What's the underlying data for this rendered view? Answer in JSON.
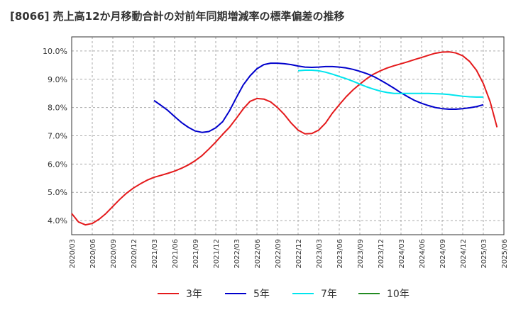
{
  "title": "[8066]  売上高12か月移動合計の対前年同期増減率の標準偏差の推移",
  "chart_data": {
    "type": "line",
    "ylim": [
      3.5,
      10.5
    ],
    "yticks": [
      "4.0%",
      "5.0%",
      "6.0%",
      "7.0%",
      "8.0%",
      "9.0%",
      "10.0%"
    ],
    "ytick_values": [
      4,
      5,
      6,
      7,
      8,
      9,
      10
    ],
    "x_range": [
      "2020/03",
      "2025/06"
    ],
    "xticks": [
      "2020/03",
      "2020/06",
      "2020/09",
      "2020/12",
      "2021/03",
      "2021/06",
      "2021/09",
      "2021/12",
      "2022/03",
      "2022/06",
      "2022/09",
      "2022/12",
      "2023/03",
      "2023/06",
      "2023/09",
      "2023/12",
      "2024/03",
      "2024/06",
      "2024/09",
      "2024/12",
      "2025/03",
      "2025/06"
    ],
    "grid": true,
    "legend_position": "bottom",
    "series": [
      {
        "name": "3年",
        "color": "#e41a1c",
        "points": [
          [
            "2020/03",
            4.25
          ],
          [
            "2020/04",
            3.95
          ],
          [
            "2020/05",
            3.85
          ],
          [
            "2020/06",
            3.9
          ],
          [
            "2020/07",
            4.05
          ],
          [
            "2020/08",
            4.25
          ],
          [
            "2020/09",
            4.5
          ],
          [
            "2020/10",
            4.75
          ],
          [
            "2020/11",
            4.97
          ],
          [
            "2020/12",
            5.15
          ],
          [
            "2021/01",
            5.3
          ],
          [
            "2021/02",
            5.43
          ],
          [
            "2021/03",
            5.53
          ],
          [
            "2021/04",
            5.6
          ],
          [
            "2021/05",
            5.67
          ],
          [
            "2021/06",
            5.75
          ],
          [
            "2021/07",
            5.85
          ],
          [
            "2021/08",
            5.97
          ],
          [
            "2021/09",
            6.12
          ],
          [
            "2021/10",
            6.3
          ],
          [
            "2021/11",
            6.53
          ],
          [
            "2021/12",
            6.78
          ],
          [
            "2022/01",
            7.05
          ],
          [
            "2022/02",
            7.3
          ],
          [
            "2022/03",
            7.62
          ],
          [
            "2022/04",
            7.95
          ],
          [
            "2022/05",
            8.22
          ],
          [
            "2022/06",
            8.32
          ],
          [
            "2022/07",
            8.3
          ],
          [
            "2022/08",
            8.2
          ],
          [
            "2022/09",
            8.0
          ],
          [
            "2022/10",
            7.75
          ],
          [
            "2022/11",
            7.45
          ],
          [
            "2022/12",
            7.2
          ],
          [
            "2023/01",
            7.07
          ],
          [
            "2023/02",
            7.08
          ],
          [
            "2023/03",
            7.2
          ],
          [
            "2023/04",
            7.45
          ],
          [
            "2023/05",
            7.8
          ],
          [
            "2023/06",
            8.1
          ],
          [
            "2023/07",
            8.38
          ],
          [
            "2023/08",
            8.62
          ],
          [
            "2023/09",
            8.83
          ],
          [
            "2023/10",
            9.02
          ],
          [
            "2023/11",
            9.18
          ],
          [
            "2023/12",
            9.3
          ],
          [
            "2024/01",
            9.4
          ],
          [
            "2024/02",
            9.48
          ],
          [
            "2024/03",
            9.55
          ],
          [
            "2024/04",
            9.62
          ],
          [
            "2024/05",
            9.7
          ],
          [
            "2024/06",
            9.77
          ],
          [
            "2024/07",
            9.85
          ],
          [
            "2024/08",
            9.92
          ],
          [
            "2024/09",
            9.96
          ],
          [
            "2024/10",
            9.97
          ],
          [
            "2024/11",
            9.93
          ],
          [
            "2024/12",
            9.83
          ],
          [
            "2025/01",
            9.63
          ],
          [
            "2025/02",
            9.32
          ],
          [
            "2025/03",
            8.85
          ],
          [
            "2025/04",
            8.2
          ],
          [
            "2025/05",
            7.3
          ]
        ]
      },
      {
        "name": "5年",
        "color": "#0000cc",
        "points": [
          [
            "2021/03",
            8.25
          ],
          [
            "2021/04",
            8.08
          ],
          [
            "2021/05",
            7.9
          ],
          [
            "2021/06",
            7.68
          ],
          [
            "2021/07",
            7.47
          ],
          [
            "2021/08",
            7.3
          ],
          [
            "2021/09",
            7.17
          ],
          [
            "2021/10",
            7.12
          ],
          [
            "2021/11",
            7.15
          ],
          [
            "2021/12",
            7.28
          ],
          [
            "2022/01",
            7.5
          ],
          [
            "2022/02",
            7.88
          ],
          [
            "2022/03",
            8.35
          ],
          [
            "2022/04",
            8.8
          ],
          [
            "2022/05",
            9.12
          ],
          [
            "2022/06",
            9.37
          ],
          [
            "2022/07",
            9.52
          ],
          [
            "2022/08",
            9.57
          ],
          [
            "2022/09",
            9.57
          ],
          [
            "2022/10",
            9.55
          ],
          [
            "2022/11",
            9.52
          ],
          [
            "2022/12",
            9.47
          ],
          [
            "2023/01",
            9.43
          ],
          [
            "2023/02",
            9.42
          ],
          [
            "2023/03",
            9.43
          ],
          [
            "2023/04",
            9.45
          ],
          [
            "2023/05",
            9.45
          ],
          [
            "2023/06",
            9.43
          ],
          [
            "2023/07",
            9.4
          ],
          [
            "2023/08",
            9.35
          ],
          [
            "2023/09",
            9.28
          ],
          [
            "2023/10",
            9.2
          ],
          [
            "2023/11",
            9.1
          ],
          [
            "2023/12",
            8.97
          ],
          [
            "2024/01",
            8.83
          ],
          [
            "2024/02",
            8.68
          ],
          [
            "2024/03",
            8.52
          ],
          [
            "2024/04",
            8.38
          ],
          [
            "2024/05",
            8.25
          ],
          [
            "2024/06",
            8.15
          ],
          [
            "2024/07",
            8.07
          ],
          [
            "2024/08",
            8.0
          ],
          [
            "2024/09",
            7.96
          ],
          [
            "2024/10",
            7.94
          ],
          [
            "2024/11",
            7.94
          ],
          [
            "2024/12",
            7.96
          ],
          [
            "2025/01",
            7.99
          ],
          [
            "2025/02",
            8.03
          ],
          [
            "2025/03",
            8.1
          ]
        ]
      },
      {
        "name": "7年",
        "color": "#00e5ee",
        "points": [
          [
            "2022/12",
            9.3
          ],
          [
            "2023/01",
            9.32
          ],
          [
            "2023/02",
            9.32
          ],
          [
            "2023/03",
            9.3
          ],
          [
            "2023/04",
            9.25
          ],
          [
            "2023/05",
            9.18
          ],
          [
            "2023/06",
            9.1
          ],
          [
            "2023/07",
            9.02
          ],
          [
            "2023/08",
            8.93
          ],
          [
            "2023/09",
            8.83
          ],
          [
            "2023/10",
            8.73
          ],
          [
            "2023/11",
            8.65
          ],
          [
            "2023/12",
            8.58
          ],
          [
            "2024/01",
            8.53
          ],
          [
            "2024/02",
            8.5
          ],
          [
            "2024/03",
            8.5
          ],
          [
            "2024/04",
            8.5
          ],
          [
            "2024/05",
            8.5
          ],
          [
            "2024/06",
            8.5
          ],
          [
            "2024/07",
            8.5
          ],
          [
            "2024/08",
            8.49
          ],
          [
            "2024/09",
            8.48
          ],
          [
            "2024/10",
            8.46
          ],
          [
            "2024/11",
            8.43
          ],
          [
            "2024/12",
            8.4
          ],
          [
            "2025/01",
            8.38
          ],
          [
            "2025/02",
            8.37
          ],
          [
            "2025/03",
            8.37
          ]
        ]
      },
      {
        "name": "10年",
        "color": "#228b22",
        "points": []
      }
    ]
  }
}
